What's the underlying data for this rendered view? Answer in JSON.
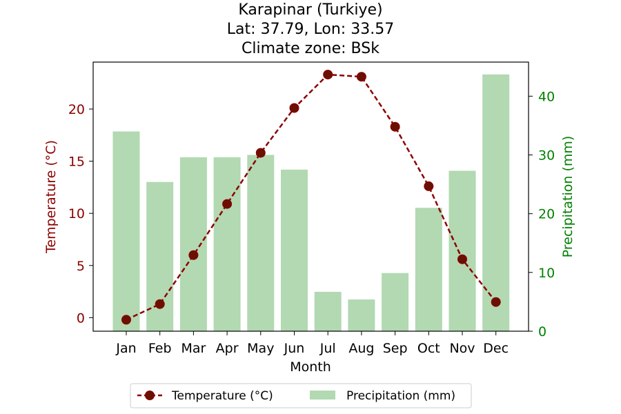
{
  "chart_data": {
    "type": "bar",
    "title_lines": [
      "Karapinar (Turkiye)",
      "Lat: 37.79, Lon: 33.57",
      "Climate zone: BSk"
    ],
    "xlabel": "Month",
    "ylabel_left": "Temperature (°C)",
    "ylabel_right": "Precipitation (mm)",
    "categories": [
      "Jan",
      "Feb",
      "Mar",
      "Apr",
      "May",
      "Jun",
      "Jul",
      "Aug",
      "Sep",
      "Oct",
      "Nov",
      "Dec"
    ],
    "temperature": {
      "name": "Temperature (°C)",
      "type": "line",
      "style": "dashed-with-markers",
      "color": "#8b0000",
      "marker_color": "#6b1000",
      "values": [
        -0.2,
        1.3,
        6.0,
        10.9,
        15.8,
        20.1,
        23.3,
        23.1,
        18.3,
        12.6,
        5.6,
        1.5
      ],
      "ylim": [
        -1.3,
        24.5
      ],
      "ticks": [
        0,
        5,
        10,
        15,
        20
      ]
    },
    "precipitation": {
      "name": "Precipitation (mm)",
      "type": "bar",
      "color": "#b2d9b2",
      "values": [
        34.0,
        25.4,
        29.6,
        29.6,
        30.0,
        27.5,
        6.7,
        5.4,
        9.9,
        21.0,
        27.3,
        43.7
      ],
      "ylim": [
        0,
        45.8
      ],
      "ticks": [
        0,
        10,
        20,
        30,
        40
      ]
    },
    "legend": {
      "placement": "bottom-center",
      "entries": [
        "Temperature (°C)",
        "Precipitation (mm)"
      ]
    },
    "grid": false
  }
}
